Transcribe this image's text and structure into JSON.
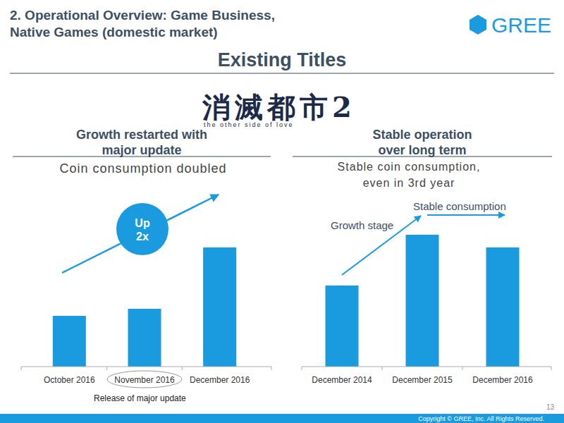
{
  "slide": {
    "header": [
      "2. Operational Overview: Game Business,",
      "Native Games (domestic market)"
    ],
    "logo": "GREE",
    "section_title": "Existing Titles",
    "game_logo": "消滅都市2",
    "game_tagline": "the other side of love",
    "page_number": 13,
    "footer": "Copyright © GREE, Inc. All Rights Reserved."
  },
  "chart_data": [
    {
      "type": "bar",
      "title": [
        "Growth restarted with",
        "major update"
      ],
      "subtitle": [
        "Coin consumption doubled"
      ],
      "categories": [
        "October 2016",
        "November 2016",
        "December 2016"
      ],
      "values": [
        72,
        82,
        169
      ],
      "color": "#1a9be0",
      "ylim": [
        0,
        190
      ],
      "tick_labels": "x",
      "annotations": [
        "Up",
        "2x",
        "Release of major update"
      ]
    },
    {
      "type": "bar",
      "title": [
        "Stable operation",
        "over long term"
      ],
      "subtitle": [
        "Stable coin consumption,",
        "even in 3rd year"
      ],
      "categories": [
        "December 2014",
        "December 2015",
        "December 2016"
      ],
      "values": [
        115,
        187,
        169
      ],
      "color": "#1a9be0",
      "ylim": [
        0,
        190
      ],
      "tick_labels": "x",
      "annotations": [
        "Growth stage",
        "Stable consumption"
      ]
    }
  ]
}
